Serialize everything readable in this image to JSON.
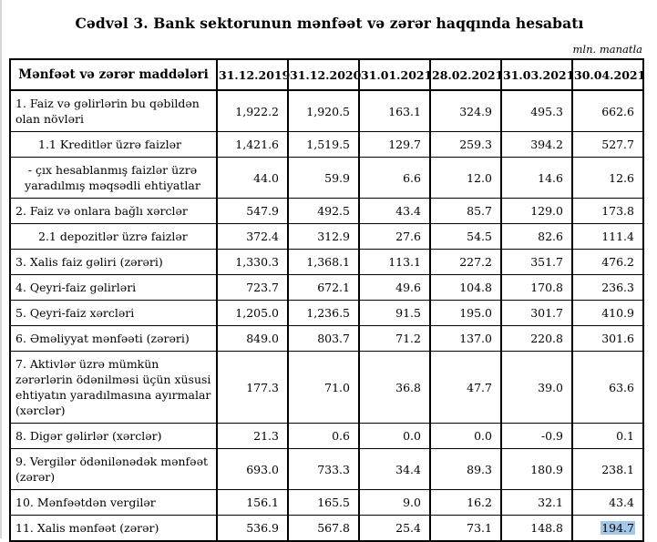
{
  "page": {
    "title": "Cədvəl 3. Bank sektorunun mənfəət və zərər haqqında hesabatı",
    "unit_note": "mln. manatla"
  },
  "table": {
    "label_header": "Mənfəət və zərər maddələri",
    "columns": [
      "31.12.2019",
      "31.12.2020",
      "31.01.2021",
      "28.02.2021",
      "31.03.2021",
      "30.04.2021"
    ],
    "rows": [
      {
        "label": "1. Faiz və gəlirlərin bu qəbildən olan növləri",
        "style": "main",
        "values": [
          "1,922.2",
          "1,920.5",
          "163.1",
          "324.9",
          "495.3",
          "662.6"
        ]
      },
      {
        "label": "1.1 Kreditlər üzrə faizlər",
        "style": "sub",
        "values": [
          "1,421.6",
          "1,519.5",
          "129.7",
          "259.3",
          "394.2",
          "527.7"
        ]
      },
      {
        "label": "- çıx hesablanmış faizlər üzrə yaradılmış məqsədli ehtiyatlar",
        "style": "dash",
        "values": [
          "44.0",
          "59.9",
          "6.6",
          "12.0",
          "14.6",
          "12.6"
        ]
      },
      {
        "label": "2. Faiz və onlara bağlı xərclər",
        "style": "main",
        "values": [
          "547.9",
          "492.5",
          "43.4",
          "85.7",
          "129.0",
          "173.8"
        ]
      },
      {
        "label": "2.1 depozitlər üzrə faizlər",
        "style": "sub",
        "values": [
          "372.4",
          "312.9",
          "27.6",
          "54.5",
          "82.6",
          "111.4"
        ]
      },
      {
        "label": "3. Xalis faiz gəliri (zərəri)",
        "style": "main",
        "values": [
          "1,330.3",
          "1,368.1",
          "113.1",
          "227.2",
          "351.7",
          "476.2"
        ]
      },
      {
        "label": "4. Qeyri-faiz gəlirləri",
        "style": "main",
        "values": [
          "723.7",
          "672.1",
          "49.6",
          "104.8",
          "170.8",
          "236.3"
        ]
      },
      {
        "label": "5. Qeyri-faiz xərcləri",
        "style": "main",
        "values": [
          "1,205.0",
          "1,236.5",
          "91.5",
          "195.0",
          "301.7",
          "410.9"
        ]
      },
      {
        "label": "6. Əməliyyat mənfəəti (zərəri)",
        "style": "main",
        "values": [
          "849.0",
          "803.7",
          "71.2",
          "137.0",
          "220.8",
          "301.6"
        ]
      },
      {
        "label": "7. Aktivlər üzrə mümkün zərərlərin ödənilməsi üçün xüsusi ehtiyatın yaradılmasına ayırmalar (xərclər)",
        "style": "main",
        "values": [
          "177.3",
          "71.0",
          "36.8",
          "47.7",
          "39.0",
          "63.6"
        ]
      },
      {
        "label": "8. Digər gəlirlər (xərclər)",
        "style": "main",
        "values": [
          "21.3",
          "0.6",
          "0.0",
          "0.0",
          "-0.9",
          "0.1"
        ]
      },
      {
        "label": "9. Vergilər ödənilənədək mənfəət (zərər)",
        "style": "main",
        "values": [
          "693.0",
          "733.3",
          "34.4",
          "89.3",
          "180.9",
          "238.1"
        ]
      },
      {
        "label": "10. Mənfəətdən vergilər",
        "style": "main",
        "values": [
          "156.1",
          "165.5",
          "9.0",
          "16.2",
          "32.1",
          "43.4"
        ]
      },
      {
        "label": "11. Xalis mənfəət (zərər)",
        "style": "main",
        "values": [
          "536.9",
          "567.8",
          "25.4",
          "73.1",
          "148.8",
          "194.7"
        ]
      }
    ],
    "highlight": {
      "row": 13,
      "col": 5,
      "color": "#a6c8e8"
    }
  }
}
